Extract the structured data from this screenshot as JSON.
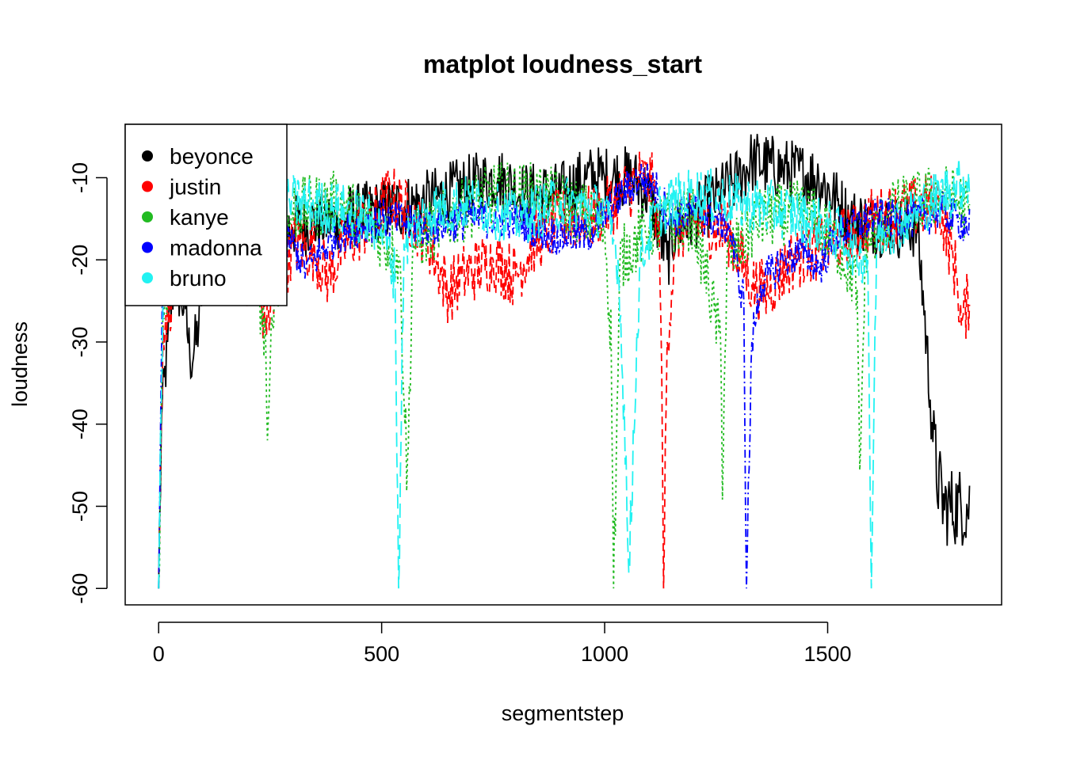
{
  "chart_data": {
    "type": "line",
    "title": "matplot loudness_start",
    "xlabel": "segmentstep",
    "ylabel": "loudness",
    "xlim": [
      -75,
      1890
    ],
    "ylim": [
      -62,
      -3.5
    ],
    "xticks": [
      0,
      500,
      1000,
      1500
    ],
    "xtick_labels": [
      "0",
      "500",
      "1000",
      "1500"
    ],
    "yticks": [
      -10,
      -20,
      -30,
      -40,
      -50,
      -60
    ],
    "ytick_labels": [
      "-10",
      "-20",
      "-30",
      "-40",
      "-50",
      "-60"
    ],
    "grid": false,
    "legend_position": "top-left",
    "series": [
      {
        "name": "beyonce",
        "color": "#000000",
        "dash": "solid",
        "length": 1820,
        "keypoints": [
          [
            0,
            -60
          ],
          [
            6,
            -40
          ],
          [
            20,
            -30
          ],
          [
            35,
            -22
          ],
          [
            60,
            -26
          ],
          [
            70,
            -32
          ],
          [
            85,
            -30
          ],
          [
            100,
            -22
          ],
          [
            150,
            -18
          ],
          [
            300,
            -16
          ],
          [
            500,
            -14
          ],
          [
            600,
            -13
          ],
          [
            700,
            -11
          ],
          [
            760,
            -10
          ],
          [
            820,
            -12
          ],
          [
            900,
            -12
          ],
          [
            960,
            -10
          ],
          [
            1000,
            -10
          ],
          [
            1060,
            -10
          ],
          [
            1100,
            -12
          ],
          [
            1140,
            -20
          ],
          [
            1160,
            -16
          ],
          [
            1200,
            -15
          ],
          [
            1300,
            -10
          ],
          [
            1330,
            -8
          ],
          [
            1400,
            -9
          ],
          [
            1480,
            -10
          ],
          [
            1550,
            -15
          ],
          [
            1650,
            -16
          ],
          [
            1700,
            -16
          ],
          [
            1715,
            -25
          ],
          [
            1730,
            -37
          ],
          [
            1745,
            -46
          ],
          [
            1760,
            -50
          ],
          [
            1820,
            -50
          ]
        ],
        "noise": 4
      },
      {
        "name": "justin",
        "color": "#ff0000",
        "dash": "10,6",
        "length": 1820,
        "keypoints": [
          [
            0,
            -58
          ],
          [
            10,
            -28
          ],
          [
            40,
            -22
          ],
          [
            100,
            -19
          ],
          [
            200,
            -22
          ],
          [
            240,
            -27
          ],
          [
            270,
            -24
          ],
          [
            300,
            -18
          ],
          [
            350,
            -19
          ],
          [
            380,
            -22
          ],
          [
            420,
            -18
          ],
          [
            480,
            -15
          ],
          [
            520,
            -12
          ],
          [
            600,
            -17
          ],
          [
            650,
            -24
          ],
          [
            680,
            -22
          ],
          [
            750,
            -20
          ],
          [
            800,
            -22
          ],
          [
            840,
            -18
          ],
          [
            900,
            -15
          ],
          [
            960,
            -15
          ],
          [
            1000,
            -14
          ],
          [
            1040,
            -12
          ],
          [
            1080,
            -10
          ],
          [
            1110,
            -11
          ],
          [
            1125,
            -20
          ],
          [
            1132,
            -60
          ],
          [
            1140,
            -30
          ],
          [
            1160,
            -17
          ],
          [
            1200,
            -15
          ],
          [
            1280,
            -17
          ],
          [
            1330,
            -23
          ],
          [
            1360,
            -24
          ],
          [
            1420,
            -20
          ],
          [
            1500,
            -18
          ],
          [
            1560,
            -17
          ],
          [
            1600,
            -15
          ],
          [
            1680,
            -14
          ],
          [
            1750,
            -13
          ],
          [
            1790,
            -22
          ],
          [
            1800,
            -28
          ],
          [
            1820,
            -24
          ]
        ],
        "noise": 4
      },
      {
        "name": "kanye",
        "color": "#22bb22",
        "dash": "3,4",
        "length": 1820,
        "keypoints": [
          [
            0,
            -60
          ],
          [
            10,
            -25
          ],
          [
            50,
            -16
          ],
          [
            150,
            -16
          ],
          [
            220,
            -22
          ],
          [
            240,
            -30
          ],
          [
            245,
            -45
          ],
          [
            255,
            -25
          ],
          [
            300,
            -14
          ],
          [
            400,
            -13
          ],
          [
            480,
            -16
          ],
          [
            540,
            -20
          ],
          [
            558,
            -47
          ],
          [
            570,
            -18
          ],
          [
            650,
            -15
          ],
          [
            750,
            -12
          ],
          [
            850,
            -12
          ],
          [
            940,
            -14
          ],
          [
            1000,
            -16
          ],
          [
            1015,
            -30
          ],
          [
            1020,
            -60
          ],
          [
            1035,
            -20
          ],
          [
            1100,
            -16
          ],
          [
            1200,
            -15
          ],
          [
            1260,
            -30
          ],
          [
            1264,
            -45
          ],
          [
            1275,
            -20
          ],
          [
            1350,
            -15
          ],
          [
            1450,
            -14
          ],
          [
            1520,
            -18
          ],
          [
            1565,
            -23
          ],
          [
            1572,
            -47
          ],
          [
            1585,
            -18
          ],
          [
            1650,
            -14
          ],
          [
            1750,
            -12
          ],
          [
            1800,
            -13
          ],
          [
            1820,
            -15
          ]
        ],
        "noise": 4
      },
      {
        "name": "madonna",
        "color": "#0000ff",
        "dash": "10,4,2,4",
        "length": 1820,
        "keypoints": [
          [
            0,
            -60
          ],
          [
            8,
            -25
          ],
          [
            40,
            -18
          ],
          [
            150,
            -17
          ],
          [
            300,
            -18
          ],
          [
            330,
            -21
          ],
          [
            400,
            -17
          ],
          [
            500,
            -15
          ],
          [
            600,
            -16
          ],
          [
            700,
            -15
          ],
          [
            800,
            -15
          ],
          [
            880,
            -17
          ],
          [
            960,
            -17
          ],
          [
            1010,
            -14
          ],
          [
            1040,
            -12
          ],
          [
            1080,
            -10
          ],
          [
            1110,
            -11
          ],
          [
            1150,
            -15
          ],
          [
            1200,
            -14
          ],
          [
            1280,
            -16
          ],
          [
            1300,
            -22
          ],
          [
            1312,
            -25
          ],
          [
            1318,
            -60
          ],
          [
            1330,
            -30
          ],
          [
            1350,
            -23
          ],
          [
            1400,
            -20
          ],
          [
            1450,
            -19
          ],
          [
            1480,
            -21
          ],
          [
            1520,
            -17
          ],
          [
            1600,
            -15
          ],
          [
            1700,
            -15
          ],
          [
            1750,
            -14
          ],
          [
            1790,
            -15
          ],
          [
            1820,
            -16
          ]
        ],
        "noise": 2.5
      },
      {
        "name": "bruno",
        "color": "#22f2f2",
        "dash": "18,8",
        "length": 1820,
        "keypoints": [
          [
            0,
            -60
          ],
          [
            10,
            -25
          ],
          [
            40,
            -17
          ],
          [
            150,
            -15
          ],
          [
            300,
            -13
          ],
          [
            420,
            -14
          ],
          [
            500,
            -16
          ],
          [
            530,
            -22
          ],
          [
            538,
            -60
          ],
          [
            550,
            -18
          ],
          [
            600,
            -14
          ],
          [
            700,
            -13
          ],
          [
            800,
            -15
          ],
          [
            900,
            -13
          ],
          [
            1000,
            -14
          ],
          [
            1030,
            -20
          ],
          [
            1045,
            -40
          ],
          [
            1055,
            -60
          ],
          [
            1065,
            -40
          ],
          [
            1080,
            -20
          ],
          [
            1120,
            -14
          ],
          [
            1200,
            -12
          ],
          [
            1300,
            -13
          ],
          [
            1400,
            -14
          ],
          [
            1500,
            -16
          ],
          [
            1590,
            -20
          ],
          [
            1598,
            -60
          ],
          [
            1610,
            -17
          ],
          [
            1700,
            -14
          ],
          [
            1820,
            -10
          ]
        ],
        "noise": 3.5
      }
    ]
  }
}
